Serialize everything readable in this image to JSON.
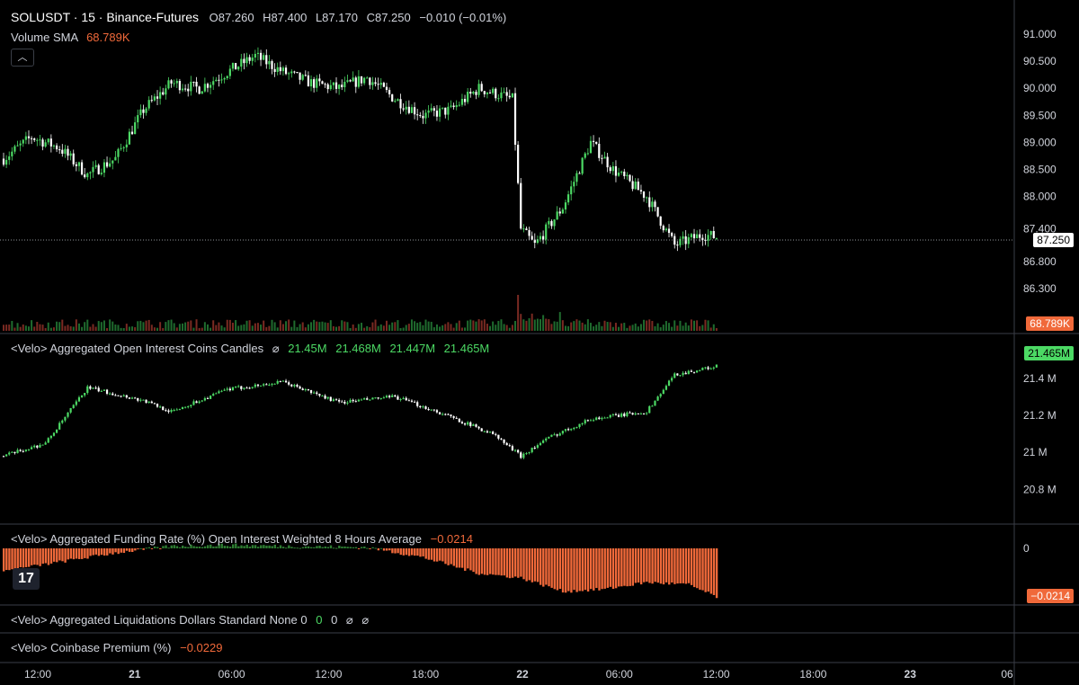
{
  "header": {
    "symbol": "SOLUSDT · 15 · Binance-Futures",
    "ohlc_open": "O87.260",
    "ohlc_high": "H87.400",
    "ohlc_low": "L87.170",
    "ohlc_close": "C87.250",
    "change": "−0.010 (−0.01%)",
    "volume_label": "Volume SMA",
    "volume_value": "68.789K",
    "collapse_icon": "chevron-up-icon"
  },
  "panels": {
    "oi": {
      "title": "<Velo> Aggregated Open Interest Coins Candles",
      "icon": "hidden-eye-icon",
      "v1": "21.45M",
      "v2": "21.468M",
      "v3": "21.447M",
      "v4": "21.465M",
      "last_label": "21.465M"
    },
    "funding": {
      "title": "<Velo> Aggregated Funding Rate (%) Open Interest Weighted 8 Hours Average",
      "value": "−0.0214",
      "last_label": "−0.0214"
    },
    "liquidations": {
      "title": "<Velo> Aggregated Liquidations Dollars Standard None 0",
      "v1": "0",
      "v2": "0"
    },
    "premium": {
      "title": "<Velo> Coinbase Premium (%)",
      "value": "−0.0229"
    }
  },
  "colors": {
    "background": "#000000",
    "up": "#4cd964",
    "down": "#ffffff",
    "volume_up": "#1f6b2e",
    "volume_down": "#7a2a22",
    "funding_neg": "#f0693a",
    "funding_pos": "#2e7d32",
    "grid_divider": "#3a3e47",
    "text": "#d1d4dc"
  },
  "chart_data": [
    {
      "type": "candlestick",
      "title": "SOLUSDT · 15 · Binance-Futures",
      "ylim": [
        85.9,
        91.3
      ],
      "y_ticks": [
        "91.000",
        "90.500",
        "90.000",
        "89.500",
        "89.000",
        "88.500",
        "88.000",
        "87.400",
        "86.800",
        "86.300"
      ],
      "last_price_label": "87.250",
      "volume_label": "68.789K",
      "anchor_points": [
        [
          0,
          88.7
        ],
        [
          10,
          89.1
        ],
        [
          20,
          88.9
        ],
        [
          30,
          88.4
        ],
        [
          40,
          88.7
        ],
        [
          50,
          89.6
        ],
        [
          60,
          90.1
        ],
        [
          70,
          90.0
        ],
        [
          80,
          90.3
        ],
        [
          90,
          90.6
        ],
        [
          100,
          90.3
        ],
        [
          110,
          90.1
        ],
        [
          120,
          90.0
        ],
        [
          130,
          90.2
        ],
        [
          140,
          89.8
        ],
        [
          150,
          89.5
        ],
        [
          160,
          89.6
        ],
        [
          170,
          90.0
        ],
        [
          182,
          89.8
        ],
        [
          185,
          87.4
        ],
        [
          190,
          87.1
        ],
        [
          200,
          87.8
        ],
        [
          210,
          89.0
        ],
        [
          218,
          88.5
        ],
        [
          230,
          88.0
        ],
        [
          240,
          87.1
        ],
        [
          250,
          87.3
        ],
        [
          255,
          87.25
        ]
      ],
      "grid": false
    },
    {
      "type": "candlestick",
      "title": "<Velo> Aggregated Open Interest Coins Candles",
      "ylim": [
        20.7,
        21.55
      ],
      "y_ticks": [
        "21.4 M",
        "21.2 M",
        "21 M",
        "20.8 M"
      ],
      "last_label": "21.465M",
      "anchor_points": [
        [
          0,
          20.98
        ],
        [
          15,
          21.05
        ],
        [
          30,
          21.35
        ],
        [
          50,
          21.28
        ],
        [
          60,
          21.22
        ],
        [
          80,
          21.34
        ],
        [
          100,
          21.38
        ],
        [
          120,
          21.27
        ],
        [
          140,
          21.3
        ],
        [
          155,
          21.22
        ],
        [
          175,
          21.1
        ],
        [
          185,
          20.98
        ],
        [
          195,
          21.08
        ],
        [
          210,
          21.18
        ],
        [
          230,
          21.22
        ],
        [
          240,
          21.42
        ],
        [
          255,
          21.465
        ]
      ]
    },
    {
      "type": "bar",
      "title": "<Velo> Aggregated Funding Rate (%) Open Interest Weighted 8 Hours Average",
      "ylim": [
        -0.0214,
        0.002
      ],
      "y_ticks": [
        "0"
      ],
      "last_label": "−0.0214",
      "anchor_points": [
        [
          0,
          -0.01
        ],
        [
          20,
          -0.006
        ],
        [
          40,
          -0.002
        ],
        [
          60,
          0.001
        ],
        [
          80,
          0.0015
        ],
        [
          100,
          0.001
        ],
        [
          130,
          0.0005
        ],
        [
          150,
          -0.004
        ],
        [
          170,
          -0.011
        ],
        [
          185,
          -0.013
        ],
        [
          200,
          -0.019
        ],
        [
          215,
          -0.018
        ],
        [
          230,
          -0.015
        ],
        [
          245,
          -0.016
        ],
        [
          255,
          -0.0214
        ]
      ]
    }
  ],
  "x_axis": {
    "labels": [
      "12:00",
      "21",
      "06:00",
      "12:00",
      "18:00",
      "22",
      "06:00",
      "12:00",
      "18:00",
      "23",
      "06"
    ]
  }
}
